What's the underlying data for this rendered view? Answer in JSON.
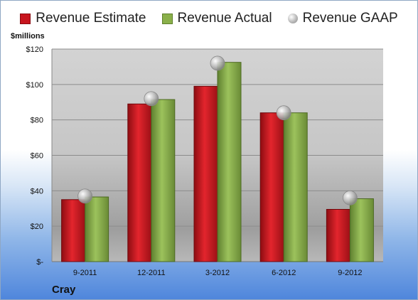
{
  "legend": {
    "estimate": "Revenue Estimate",
    "actual": "Revenue Actual",
    "gaap": "Revenue GAAP"
  },
  "unit_label": "$millions",
  "company": "Cray",
  "colors": {
    "estimate": "#c8151e",
    "actual": "#8ab04a",
    "gaap": "#b0b0b0"
  },
  "chart_data": {
    "type": "bar",
    "categories": [
      "9-2011",
      "12-2011",
      "3-2012",
      "6-2012",
      "9-2012"
    ],
    "series": [
      {
        "name": "Revenue Estimate",
        "values": [
          35,
          89,
          99,
          84,
          29.5
        ]
      },
      {
        "name": "Revenue Actual",
        "values": [
          36.5,
          91.5,
          112.5,
          84,
          35.5
        ]
      },
      {
        "name": "Revenue GAAP",
        "type": "scatter",
        "values": [
          37,
          92,
          112,
          84,
          36
        ]
      }
    ],
    "yticks": [
      "$-",
      "$20",
      "$40",
      "$60",
      "$80",
      "$100",
      "$120"
    ],
    "ylim": [
      0,
      120
    ],
    "ylabel": "$millions",
    "grid": true,
    "legend_position": "top"
  }
}
